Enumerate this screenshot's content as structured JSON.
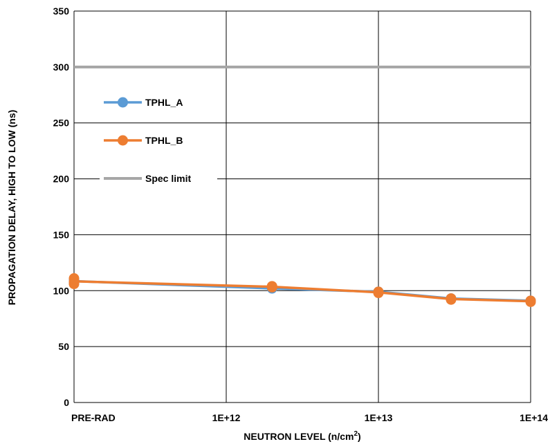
{
  "chart_data": {
    "type": "line",
    "x_scale": "log",
    "xlabel": "NEUTRON LEVEL (n/cm",
    "xlabel_sup": "2",
    "xlabel_close": ")",
    "ylabel": "PROPAGATION DELAY, HIGH TO LOW (ns)",
    "ylim": [
      0,
      350
    ],
    "yticks": [
      0,
      50,
      100,
      150,
      200,
      250,
      300,
      350
    ],
    "xlim": [
      100000000000,
      100000000000000
    ],
    "xticks": [
      {
        "value": 100000000000,
        "label": "PRE-RAD"
      },
      {
        "value": 1000000000000,
        "label": "1E+12"
      },
      {
        "value": 10000000000000,
        "label": "1E+13"
      },
      {
        "value": 100000000000000,
        "label": "1E+14"
      }
    ],
    "grid": true,
    "legend_position": "upper-left",
    "series": [
      {
        "name": "TPHL_A",
        "color": "#5B9BD5",
        "marker": "circle",
        "points": [
          {
            "x": 100000000000,
            "y": 107
          },
          {
            "x": 100000000000,
            "y": 110
          },
          {
            "x": 2000000000000,
            "y": 102
          },
          {
            "x": 10000000000000,
            "y": 99
          },
          {
            "x": 30000000000000,
            "y": 93
          },
          {
            "x": 100000000000000,
            "y": 91
          }
        ]
      },
      {
        "name": "TPHL_B",
        "color": "#ED7D31",
        "marker": "circle",
        "points": [
          {
            "x": 100000000000,
            "y": 106
          },
          {
            "x": 100000000000,
            "y": 108
          },
          {
            "x": 100000000000,
            "y": 111
          },
          {
            "x": 2000000000000,
            "y": 103
          },
          {
            "x": 2000000000000,
            "y": 104
          },
          {
            "x": 10000000000000,
            "y": 98
          },
          {
            "x": 10000000000000,
            "y": 99
          },
          {
            "x": 30000000000000,
            "y": 92
          },
          {
            "x": 30000000000000,
            "y": 93
          },
          {
            "x": 100000000000000,
            "y": 90
          },
          {
            "x": 100000000000000,
            "y": 91
          }
        ]
      }
    ],
    "reference_lines": [
      {
        "name": "Spec limit",
        "y": 300,
        "color": "#A6A6A6"
      }
    ]
  }
}
